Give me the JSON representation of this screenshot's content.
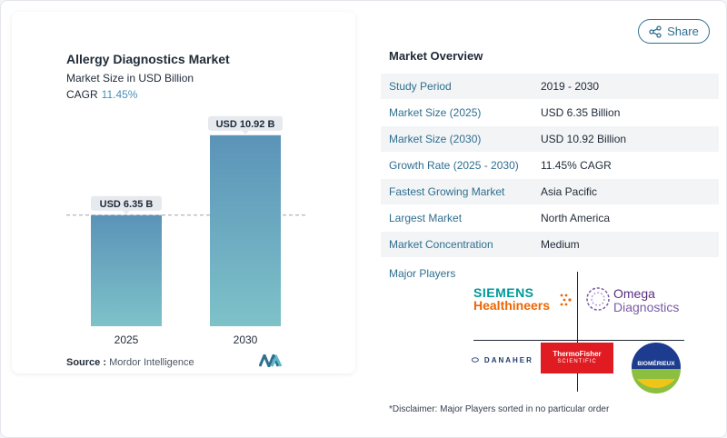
{
  "chart_data": {
    "type": "bar",
    "title": "Allergy Diagnostics Market",
    "subtitle": "Market Size in USD Billion",
    "cagr_label": "CAGR",
    "cagr_value": "11.45%",
    "categories": [
      "2025",
      "2030"
    ],
    "values": [
      6.35,
      10.92
    ],
    "data_labels": [
      "USD 6.35 B",
      "USD 10.92 B"
    ],
    "ylim": [
      0,
      12.5
    ],
    "grid": false,
    "reference_line": 6.35,
    "colors": {
      "bar_top": "#5b93b8",
      "bar_bottom": "#7ec2c9",
      "label_bg": "#e6e9ee"
    }
  },
  "source": {
    "label": "Source :",
    "value": "Mordor Intelligence"
  },
  "share": {
    "label": "Share",
    "icon": "share-icon"
  },
  "overview": {
    "title": "Market Overview",
    "rows": [
      {
        "key": "Study Period",
        "value": "2019 - 2030"
      },
      {
        "key": "Market Size (2025)",
        "value": "USD 6.35 Billion"
      },
      {
        "key": "Market Size (2030)",
        "value": "USD 10.92 Billion"
      },
      {
        "key": "Growth Rate (2025 - 2030)",
        "value": "11.45% CAGR"
      },
      {
        "key": "Fastest Growing Market",
        "value": "Asia Pacific"
      },
      {
        "key": "Largest Market",
        "value": "North America"
      },
      {
        "key": "Market Concentration",
        "value": "Medium"
      }
    ],
    "players_label": "Major Players",
    "players": {
      "siemens_line1": "SIEMENS",
      "siemens_line2": "Healthineers",
      "omega_line1": "Omega",
      "omega_line2": "Diagnostics",
      "danaher": "DANAHER",
      "thermo_line1": "ThermoFisher",
      "thermo_line2": "SCIENTIFIC",
      "biomerieux": "BIOMÉRIEUX"
    }
  },
  "disclaimer": "*Disclaimer: Major Players sorted in no particular order"
}
